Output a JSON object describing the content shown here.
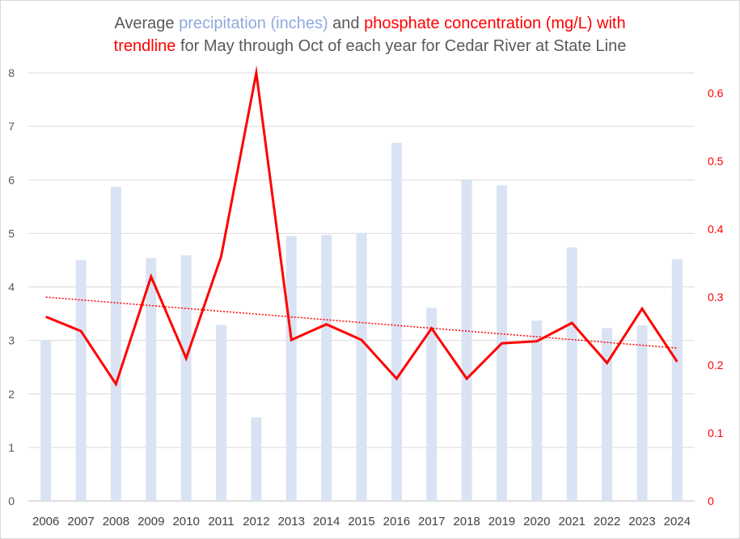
{
  "title": {
    "part1": "Average ",
    "part2": "precipitation (inches)",
    "part3": " and ",
    "part4": "phosphate concentration (mg/L) with",
    "part5": "trendline",
    "part6": " for May through Oct of each year for Cedar River at State Line"
  },
  "chart_data": {
    "type": "bar+line",
    "title": "Average precipitation (inches) and phosphate concentration (mg/L) with trendline for May through Oct of each year for Cedar River at State Line",
    "categories": [
      "2006",
      "2007",
      "2008",
      "2009",
      "2010",
      "2011",
      "2012",
      "2013",
      "2014",
      "2015",
      "2016",
      "2017",
      "2018",
      "2019",
      "2020",
      "2021",
      "2022",
      "2023",
      "2024"
    ],
    "series": [
      {
        "name": "precipitation (inches)",
        "type": "bar",
        "axis": "left",
        "color": "#dae3f3",
        "values": [
          3.0,
          4.5,
          5.87,
          4.54,
          4.59,
          3.29,
          1.56,
          4.95,
          4.97,
          5.01,
          6.69,
          3.61,
          6.0,
          5.9,
          3.37,
          4.74,
          3.23,
          3.28,
          4.52
        ]
      },
      {
        "name": "phosphate concentration (mg/L)",
        "type": "line",
        "axis": "right",
        "color": "#ff0000",
        "values": [
          0.271,
          0.25,
          0.172,
          0.33,
          0.21,
          0.36,
          0.63,
          0.237,
          0.26,
          0.237,
          0.18,
          0.254,
          0.18,
          0.232,
          0.235,
          0.262,
          0.203,
          0.283,
          0.205
        ]
      },
      {
        "name": "trendline",
        "type": "linear-trend",
        "axis": "right",
        "color": "#ff0000",
        "start": 0.3,
        "end": 0.225
      }
    ],
    "left_axis": {
      "min": 0,
      "max": 8,
      "ticks": [
        "0",
        "1",
        "2",
        "3",
        "4",
        "5",
        "6",
        "7",
        "8"
      ]
    },
    "right_axis": {
      "min": 0,
      "max": 0.63,
      "ticks": [
        "0",
        "0.1",
        "0.2",
        "0.3",
        "0.4",
        "0.5",
        "0.6"
      ],
      "color": "#ff0000"
    },
    "grid": true,
    "legend": "none"
  }
}
